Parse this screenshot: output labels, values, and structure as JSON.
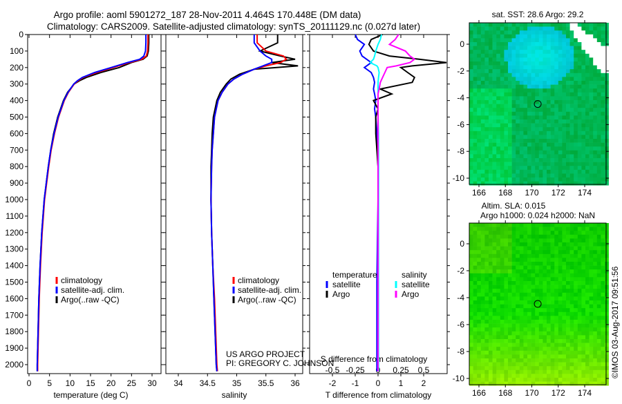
{
  "title_line1": "Argo profile: aoml 5901272_187 28-Nov-2011 4.464S 170.448E (DM data)",
  "title_line2": "Climatology: CARS2009. Satellite-adjusted climatology: synTS_20111129.nc (0.027d later)",
  "project_line1": "US ARGO PROJECT",
  "project_line2": "PI: GREGORY C. JOHNSON",
  "footer_stamp": "©IMOS 03-Aug-2017 09:51:56",
  "colors": {
    "climatology": "#ff0000",
    "satellite": "#0000ff",
    "argo": "#000000",
    "sal_satellite": "#00ffff",
    "sal_argo": "#ff00ff"
  },
  "chart_data": [
    {
      "type": "line",
      "name": "temperature-profile",
      "xlabel": "temperature (deg C)",
      "xlim": [
        -2,
        31.5
      ],
      "ylim": [
        2050,
        0
      ],
      "xticks": [
        "0",
        "5",
        "10",
        "15",
        "20",
        "25",
        "30"
      ],
      "yticks": [
        "0",
        "100",
        "200",
        "300",
        "400",
        "500",
        "600",
        "700",
        "800",
        "900",
        "1000",
        "1100",
        "1200",
        "1300",
        "1400",
        "1500",
        "1600",
        "1700",
        "1800",
        "1900",
        "2000"
      ],
      "legend": [
        "climatology",
        "satellite-adj. clim.",
        "Argo(..raw -QC)"
      ],
      "depth": [
        0,
        50,
        100,
        130,
        150,
        170,
        200,
        230,
        260,
        280,
        300,
        350,
        400,
        500,
        600,
        700,
        800,
        1000,
        1200,
        1400,
        1600,
        1800,
        2000,
        2040
      ],
      "series": [
        {
          "name": "climatology",
          "values": [
            29.0,
            29.0,
            28.9,
            28.6,
            27.5,
            24.5,
            20.5,
            16.5,
            13.2,
            12.0,
            11.0,
            9.6,
            8.6,
            7.2,
            6.2,
            5.4,
            4.8,
            3.8,
            3.2,
            2.8,
            2.5,
            2.3,
            2.1,
            2.1
          ]
        },
        {
          "name": "satellite-adj. clim.",
          "values": [
            28.5,
            28.5,
            28.4,
            28.0,
            27.0,
            24.0,
            20.0,
            16.0,
            13.0,
            11.8,
            10.9,
            9.5,
            8.5,
            7.1,
            6.1,
            5.3,
            4.7,
            3.7,
            3.1,
            2.7,
            2.4,
            2.2,
            2.0,
            2.0
          ]
        },
        {
          "name": "Argo(..raw -QC)",
          "values": [
            29.2,
            29.2,
            29.1,
            28.8,
            27.8,
            25.0,
            22.0,
            17.5,
            14.0,
            12.3,
            11.0,
            9.4,
            8.4,
            7.0,
            6.0,
            5.3,
            4.7,
            3.7,
            3.1,
            2.7,
            2.4,
            2.2,
            2.0,
            2.0
          ]
        }
      ]
    },
    {
      "type": "line",
      "name": "salinity-profile",
      "xlabel": "salinity",
      "xlim": [
        33.8,
        36.1
      ],
      "ylim": [
        2050,
        0
      ],
      "xticks": [
        "34",
        "34.5",
        "35",
        "35.5",
        "36"
      ],
      "legend": [
        "climatology",
        "satellite-adj. clim.",
        "Argo(..raw -QC)"
      ],
      "depth": [
        0,
        50,
        100,
        130,
        150,
        170,
        190,
        210,
        240,
        270,
        300,
        350,
        400,
        500,
        600,
        700,
        800,
        1000,
        1200,
        1400,
        1600,
        1800,
        2000,
        2040
      ],
      "series": [
        {
          "name": "climatology",
          "values": [
            35.35,
            35.35,
            35.5,
            35.8,
            35.85,
            35.75,
            35.5,
            35.3,
            35.1,
            34.95,
            34.85,
            34.75,
            34.68,
            34.62,
            34.6,
            34.58,
            34.57,
            34.56,
            34.57,
            34.59,
            34.62,
            34.64,
            34.66,
            34.67
          ]
        },
        {
          "name": "satellite-adj. clim.",
          "values": [
            35.3,
            35.3,
            35.4,
            35.5,
            35.6,
            35.6,
            35.45,
            35.3,
            35.1,
            34.95,
            34.85,
            34.75,
            34.68,
            34.62,
            34.6,
            34.58,
            34.57,
            34.56,
            34.57,
            34.59,
            34.61,
            34.63,
            34.65,
            34.66
          ]
        },
        {
          "name": "Argo(..raw -QC)",
          "values": [
            35.7,
            35.7,
            35.4,
            35.75,
            36.0,
            35.6,
            36.05,
            35.3,
            35.05,
            34.9,
            34.82,
            34.72,
            34.66,
            34.6,
            34.58,
            34.57,
            34.56,
            34.56,
            34.57,
            34.59,
            34.61,
            34.63,
            34.65,
            34.66
          ]
        }
      ]
    },
    {
      "type": "line",
      "name": "difference-profile",
      "xlabel": "T difference from climatology",
      "xlabel2": "S difference from climatology",
      "xlim": [
        -3,
        3
      ],
      "ylim": [
        2050,
        0
      ],
      "xticks": [
        "-2",
        "-1",
        "0",
        "1",
        "2"
      ],
      "xticks2": [
        "-0.5",
        "-0.25",
        "0",
        "0.25",
        "0.5"
      ],
      "legend_headers": [
        "temperature",
        "salinity"
      ],
      "legend": [
        "satellite",
        "Argo",
        "satellite",
        "Argo"
      ],
      "depth": [
        0,
        30,
        60,
        100,
        130,
        150,
        170,
        190,
        200,
        230,
        260,
        290,
        330,
        360,
        400,
        450,
        500,
        600,
        800,
        1000,
        1500,
        2000,
        2040
      ],
      "series": [
        {
          "name": "T satellite",
          "values": [
            -1.0,
            -0.9,
            -0.6,
            -0.8,
            -0.7,
            -0.5,
            -0.3,
            -0.5,
            -0.6,
            -0.3,
            -0.2,
            -0.15,
            -0.2,
            -0.15,
            -0.1,
            -0.15,
            -0.1,
            -0.05,
            0,
            0,
            -0.05,
            -0.05,
            -0.05
          ]
        },
        {
          "name": "T Argo",
          "values": [
            0.2,
            -0.3,
            -0.4,
            -0.2,
            0.5,
            1.8,
            3.0,
            1.5,
            1.0,
            1.3,
            1.6,
            1.5,
            0.1,
            0.6,
            -0.2,
            0,
            -0.1,
            -0.1,
            0,
            0,
            0,
            0,
            0
          ]
        },
        {
          "name": "S satellite",
          "values": [
            0.15,
            0.1,
            0.0,
            -0.1,
            -0.15,
            -0.2,
            -0.35,
            -0.05,
            0,
            0.05,
            0.02,
            0,
            0,
            0,
            0,
            0,
            0,
            0.02,
            0.02,
            0.02,
            0.02,
            0.02,
            0.02
          ]
        },
        {
          "name": "S Argo",
          "values": [
            0.9,
            0.75,
            0.5,
            1.2,
            1.4,
            1.6,
            1.4,
            0.8,
            0.4,
            0.3,
            0.2,
            0.1,
            0.05,
            0,
            0,
            0,
            0,
            0,
            0,
            0,
            0,
            0,
            0
          ]
        }
      ]
    },
    {
      "type": "heatmap",
      "name": "sst-map",
      "title": "sat. SST: 28.6 Argo: 29.2",
      "xticks": [
        "166",
        "168",
        "170",
        "172",
        "174"
      ],
      "yticks": [
        "0",
        "-2",
        "-4",
        "-6",
        "-8",
        "-10"
      ],
      "xlim": [
        165.3,
        175.6
      ],
      "ylim": [
        -10.4,
        1.6
      ],
      "float_position": [
        170.448,
        -4.464
      ]
    },
    {
      "type": "heatmap",
      "name": "sla-map",
      "title_line1": "Altim. SLA: 0.015",
      "title_line2": "Argo h1000: 0.024 h2000: NaN",
      "xticks": [
        "166",
        "168",
        "170",
        "172",
        "174"
      ],
      "yticks": [
        "0",
        "-2",
        "-4",
        "-6",
        "-8",
        "-10"
      ],
      "xlim": [
        165.3,
        175.6
      ],
      "ylim": [
        -10.4,
        1.6
      ],
      "float_position": [
        170.448,
        -4.464
      ]
    }
  ]
}
